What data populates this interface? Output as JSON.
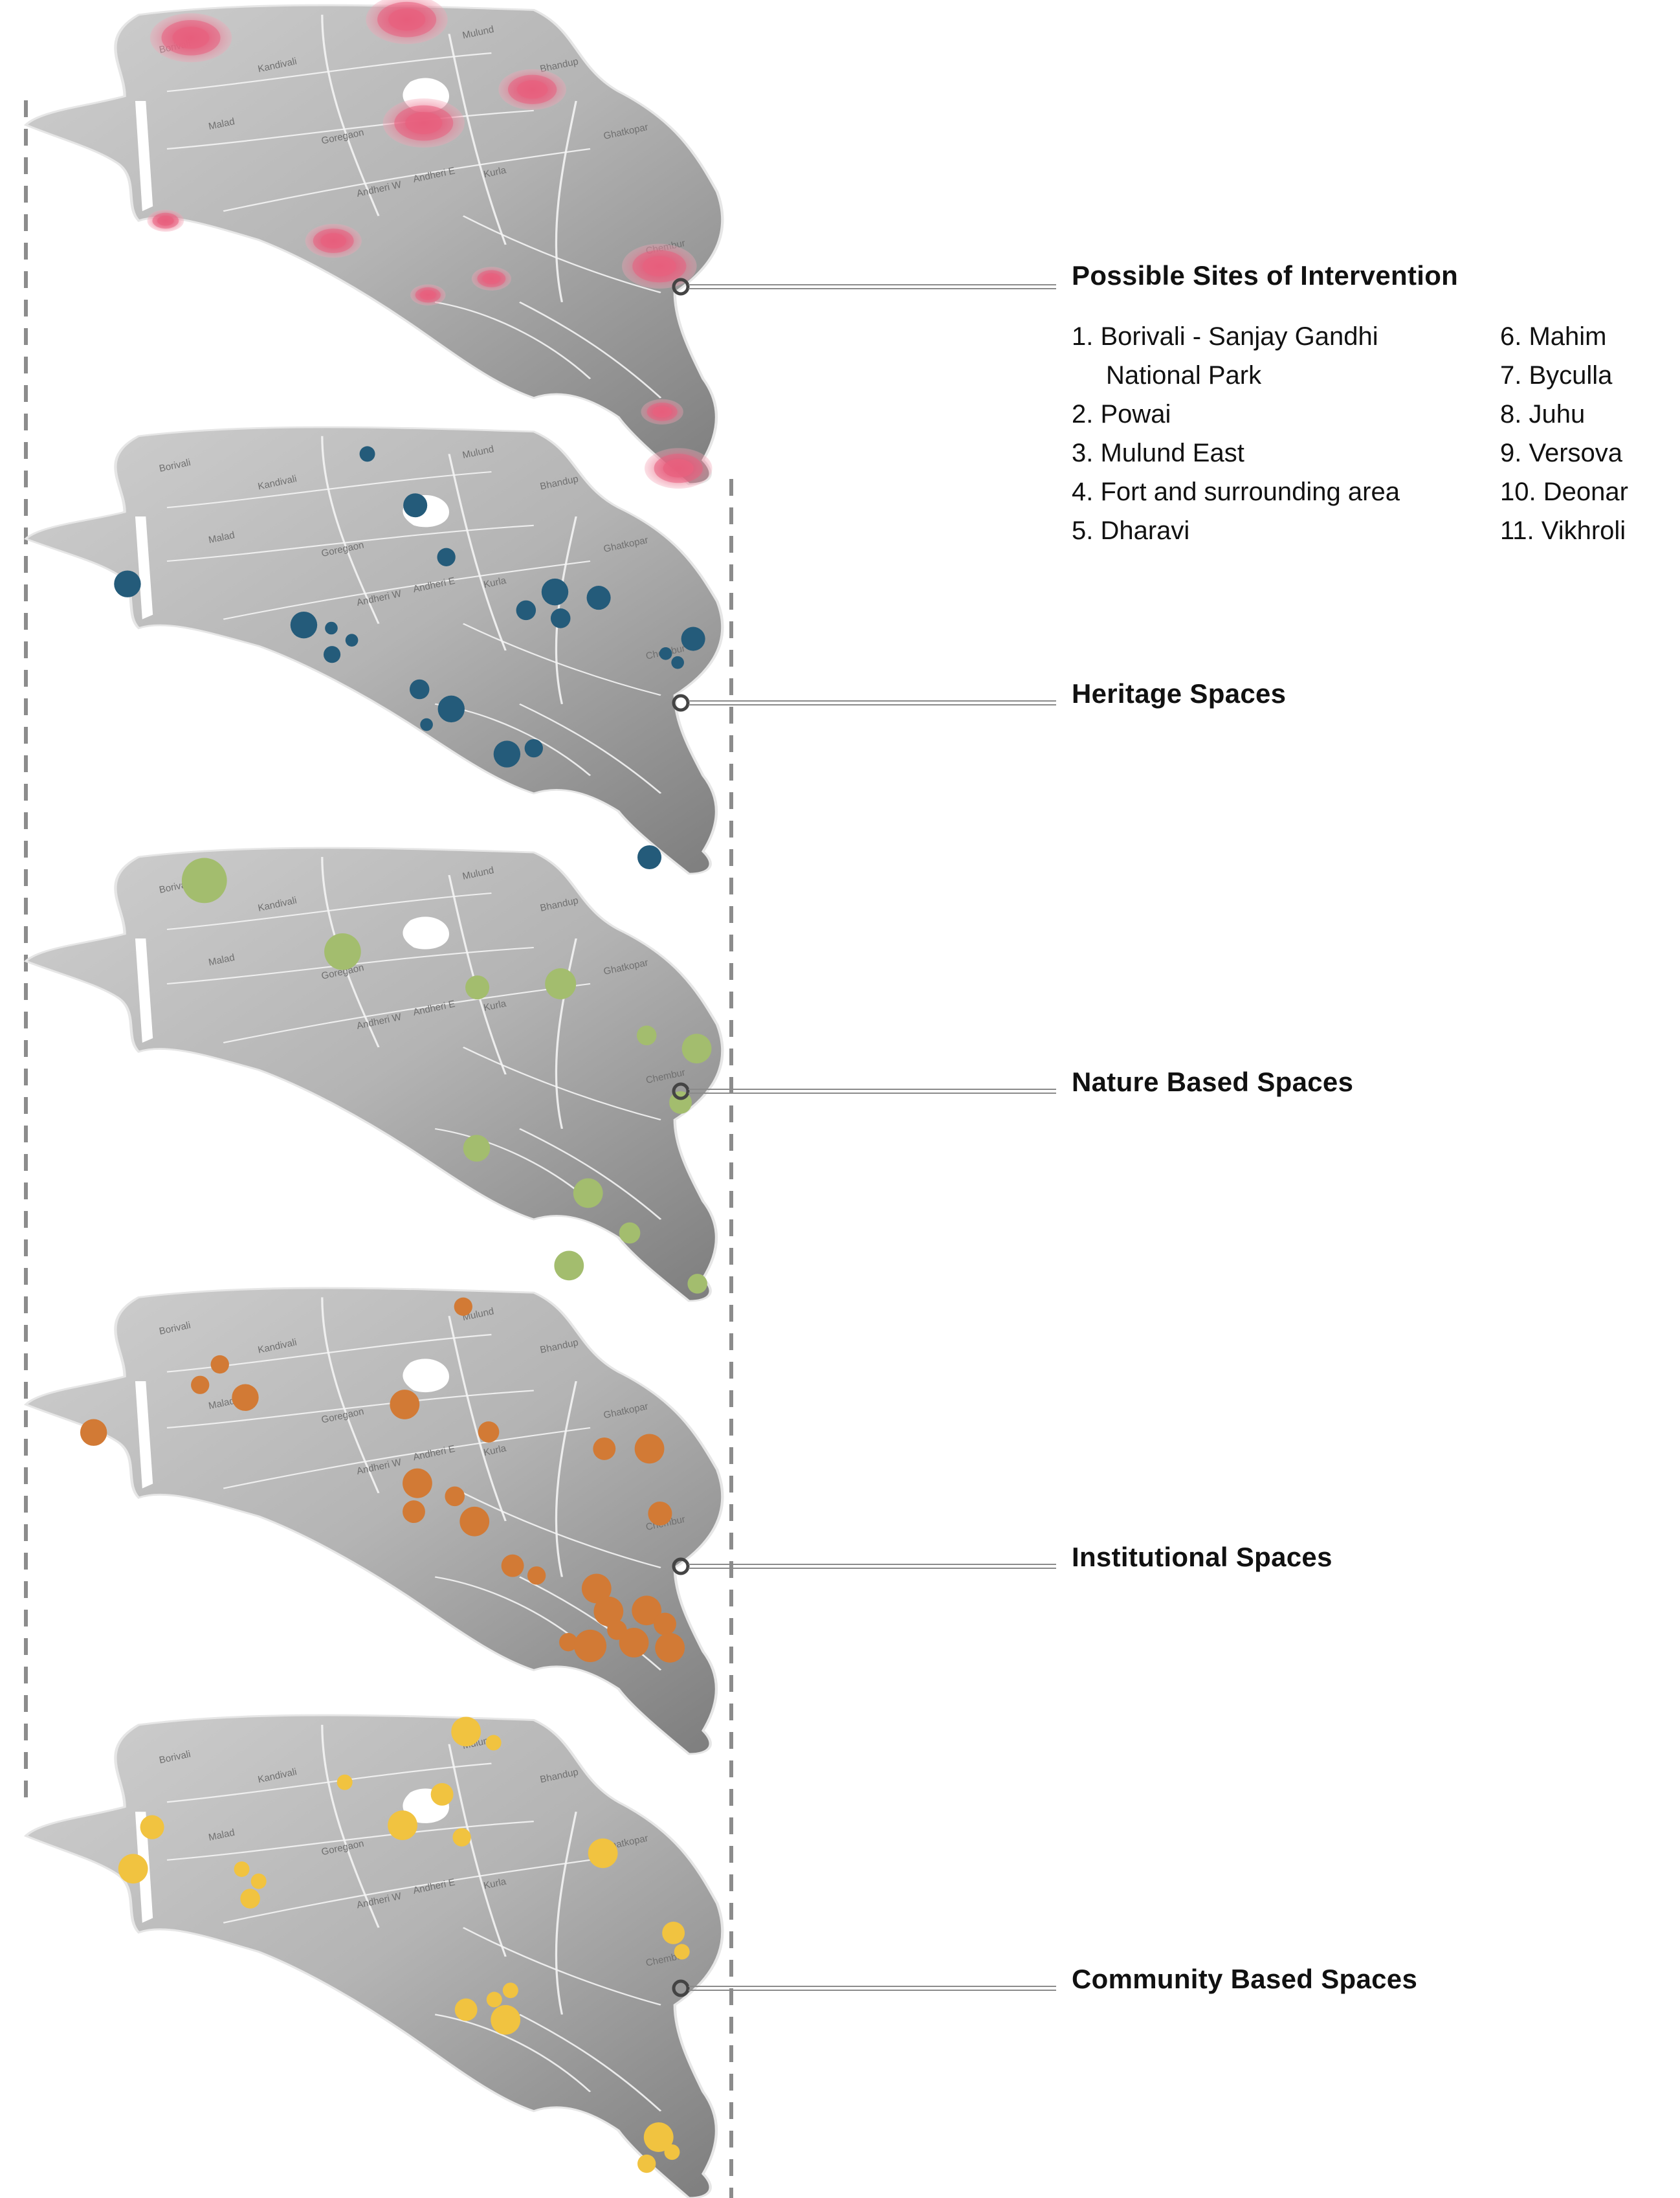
{
  "colors": {
    "land_light": "#c9c9c9",
    "land_dark": "#8a8a8a",
    "district_line": "#f2f2f2",
    "connector": "#777777",
    "dashed_guide": "#8c8c8c",
    "intervention": "#e8617f",
    "heritage": "#245b7a",
    "nature": "#a3bd6e",
    "institutional": "#d27a35",
    "community": "#f1c340"
  },
  "district_labels": [
    "Borivali",
    "Kandivali",
    "Malad",
    "Goregaon",
    "Andheri W",
    "Andheri E",
    "Mulund",
    "Bhandup",
    "Ghatkopar",
    "Kurla",
    "Chembur"
  ],
  "layers": [
    {
      "id": "intervention",
      "title": "Possible Sites of Intervention",
      "color_key": "intervention",
      "marker_style": "halo",
      "markers": [
        {
          "x": 0.234,
          "y": 0.068,
          "r": 0.058
        },
        {
          "x": 0.54,
          "y": 0.03,
          "r": 0.058
        },
        {
          "x": 0.718,
          "y": 0.176,
          "r": 0.048
        },
        {
          "x": 0.564,
          "y": 0.246,
          "r": 0.058
        },
        {
          "x": 0.198,
          "y": 0.45,
          "r": 0.026
        },
        {
          "x": 0.436,
          "y": 0.492,
          "r": 0.04
        },
        {
          "x": 0.57,
          "y": 0.605,
          "r": 0.025
        },
        {
          "x": 0.66,
          "y": 0.571,
          "r": 0.028
        },
        {
          "x": 0.898,
          "y": 0.545,
          "r": 0.053
        },
        {
          "x": 0.902,
          "y": 0.849,
          "r": 0.03
        },
        {
          "x": 0.925,
          "y": 0.967,
          "r": 0.048
        }
      ]
    },
    {
      "id": "heritage",
      "title": "Heritage Spaces",
      "color_key": "heritage",
      "marker_style": "dot",
      "markers": [
        {
          "x": 0.484,
          "y": 0.06,
          "r": 0.011
        },
        {
          "x": 0.552,
          "y": 0.175,
          "r": 0.017
        },
        {
          "x": 0.596,
          "y": 0.291,
          "r": 0.013
        },
        {
          "x": 0.144,
          "y": 0.351,
          "r": 0.019
        },
        {
          "x": 0.394,
          "y": 0.443,
          "r": 0.019
        },
        {
          "x": 0.433,
          "y": 0.45,
          "r": 0.009
        },
        {
          "x": 0.462,
          "y": 0.477,
          "r": 0.009
        },
        {
          "x": 0.434,
          "y": 0.509,
          "r": 0.012
        },
        {
          "x": 0.558,
          "y": 0.587,
          "r": 0.014
        },
        {
          "x": 0.603,
          "y": 0.631,
          "r": 0.019
        },
        {
          "x": 0.568,
          "y": 0.666,
          "r": 0.009
        },
        {
          "x": 0.709,
          "y": 0.41,
          "r": 0.014
        },
        {
          "x": 0.75,
          "y": 0.369,
          "r": 0.019
        },
        {
          "x": 0.758,
          "y": 0.428,
          "r": 0.014
        },
        {
          "x": 0.812,
          "y": 0.382,
          "r": 0.017
        },
        {
          "x": 0.907,
          "y": 0.507,
          "r": 0.009
        },
        {
          "x": 0.924,
          "y": 0.527,
          "r": 0.009
        },
        {
          "x": 0.946,
          "y": 0.474,
          "r": 0.017
        },
        {
          "x": 0.682,
          "y": 0.732,
          "r": 0.019
        },
        {
          "x": 0.72,
          "y": 0.719,
          "r": 0.013
        },
        {
          "x": 0.884,
          "y": 0.963,
          "r": 0.017
        }
      ]
    },
    {
      "id": "nature",
      "title": "Nature Based Spaces",
      "color_key": "nature",
      "marker_style": "dot",
      "markers": [
        {
          "x": 0.253,
          "y": 0.072,
          "r": 0.032
        },
        {
          "x": 0.449,
          "y": 0.229,
          "r": 0.026
        },
        {
          "x": 0.64,
          "y": 0.308,
          "r": 0.017
        },
        {
          "x": 0.758,
          "y": 0.3,
          "r": 0.022
        },
        {
          "x": 0.88,
          "y": 0.414,
          "r": 0.014
        },
        {
          "x": 0.951,
          "y": 0.443,
          "r": 0.021
        },
        {
          "x": 0.928,
          "y": 0.562,
          "r": 0.016
        },
        {
          "x": 0.639,
          "y": 0.663,
          "r": 0.019
        },
        {
          "x": 0.797,
          "y": 0.762,
          "r": 0.021
        },
        {
          "x": 0.856,
          "y": 0.85,
          "r": 0.015
        },
        {
          "x": 0.77,
          "y": 0.922,
          "r": 0.021
        },
        {
          "x": 0.952,
          "y": 0.962,
          "r": 0.014
        }
      ]
    },
    {
      "id": "institutional",
      "title": "Institutional Spaces",
      "color_key": "institutional",
      "marker_style": "dot",
      "markers": [
        {
          "x": 0.62,
          "y": 0.04,
          "r": 0.013
        },
        {
          "x": 0.275,
          "y": 0.164,
          "r": 0.013
        },
        {
          "x": 0.247,
          "y": 0.208,
          "r": 0.013
        },
        {
          "x": 0.311,
          "y": 0.235,
          "r": 0.019
        },
        {
          "x": 0.096,
          "y": 0.31,
          "r": 0.019
        },
        {
          "x": 0.537,
          "y": 0.25,
          "r": 0.021
        },
        {
          "x": 0.656,
          "y": 0.309,
          "r": 0.015
        },
        {
          "x": 0.82,
          "y": 0.345,
          "r": 0.016
        },
        {
          "x": 0.884,
          "y": 0.345,
          "r": 0.021
        },
        {
          "x": 0.555,
          "y": 0.419,
          "r": 0.021
        },
        {
          "x": 0.608,
          "y": 0.447,
          "r": 0.014
        },
        {
          "x": 0.55,
          "y": 0.48,
          "r": 0.016
        },
        {
          "x": 0.636,
          "y": 0.501,
          "r": 0.021
        },
        {
          "x": 0.899,
          "y": 0.484,
          "r": 0.017
        },
        {
          "x": 0.69,
          "y": 0.596,
          "r": 0.016
        },
        {
          "x": 0.724,
          "y": 0.617,
          "r": 0.013
        },
        {
          "x": 0.809,
          "y": 0.645,
          "r": 0.021
        },
        {
          "x": 0.826,
          "y": 0.694,
          "r": 0.021
        },
        {
          "x": 0.88,
          "y": 0.692,
          "r": 0.021
        },
        {
          "x": 0.906,
          "y": 0.721,
          "r": 0.016
        },
        {
          "x": 0.862,
          "y": 0.761,
          "r": 0.021
        },
        {
          "x": 0.913,
          "y": 0.772,
          "r": 0.021
        },
        {
          "x": 0.838,
          "y": 0.734,
          "r": 0.014
        },
        {
          "x": 0.769,
          "y": 0.76,
          "r": 0.013
        },
        {
          "x": 0.8,
          "y": 0.768,
          "r": 0.023
        }
      ]
    },
    {
      "id": "community",
      "title": "Community Based Spaces",
      "color_key": "community",
      "marker_style": "dot",
      "markers": [
        {
          "x": 0.624,
          "y": 0.034,
          "r": 0.021
        },
        {
          "x": 0.663,
          "y": 0.057,
          "r": 0.011
        },
        {
          "x": 0.452,
          "y": 0.139,
          "r": 0.011
        },
        {
          "x": 0.59,
          "y": 0.164,
          "r": 0.016
        },
        {
          "x": 0.534,
          "y": 0.228,
          "r": 0.021
        },
        {
          "x": 0.618,
          "y": 0.253,
          "r": 0.013
        },
        {
          "x": 0.179,
          "y": 0.232,
          "r": 0.017
        },
        {
          "x": 0.152,
          "y": 0.318,
          "r": 0.021
        },
        {
          "x": 0.306,
          "y": 0.319,
          "r": 0.011
        },
        {
          "x": 0.33,
          "y": 0.344,
          "r": 0.011
        },
        {
          "x": 0.318,
          "y": 0.38,
          "r": 0.014
        },
        {
          "x": 0.818,
          "y": 0.286,
          "r": 0.021
        },
        {
          "x": 0.918,
          "y": 0.451,
          "r": 0.016
        },
        {
          "x": 0.93,
          "y": 0.49,
          "r": 0.011
        },
        {
          "x": 0.624,
          "y": 0.61,
          "r": 0.016
        },
        {
          "x": 0.664,
          "y": 0.589,
          "r": 0.011
        },
        {
          "x": 0.687,
          "y": 0.57,
          "r": 0.011
        },
        {
          "x": 0.68,
          "y": 0.631,
          "r": 0.021
        },
        {
          "x": 0.897,
          "y": 0.874,
          "r": 0.021
        },
        {
          "x": 0.916,
          "y": 0.905,
          "r": 0.011
        },
        {
          "x": 0.88,
          "y": 0.929,
          "r": 0.013
        }
      ]
    }
  ],
  "sites_col1": [
    {
      "text": "1. Borivali - Sanjay Gandhi"
    },
    {
      "text": "National Park",
      "wrap": true
    },
    {
      "text": "2. Powai"
    },
    {
      "text": "3. Mulund East"
    },
    {
      "text": "4. Fort and surrounding area"
    },
    {
      "text": "5. Dharavi"
    }
  ],
  "sites_col2": [
    {
      "text": "6. Mahim"
    },
    {
      "text": "7. Byculla"
    },
    {
      "text": "8. Juhu"
    },
    {
      "text": "9. Versova"
    },
    {
      "text": "10. Deonar"
    },
    {
      "text": "11. Vikhroli"
    }
  ]
}
